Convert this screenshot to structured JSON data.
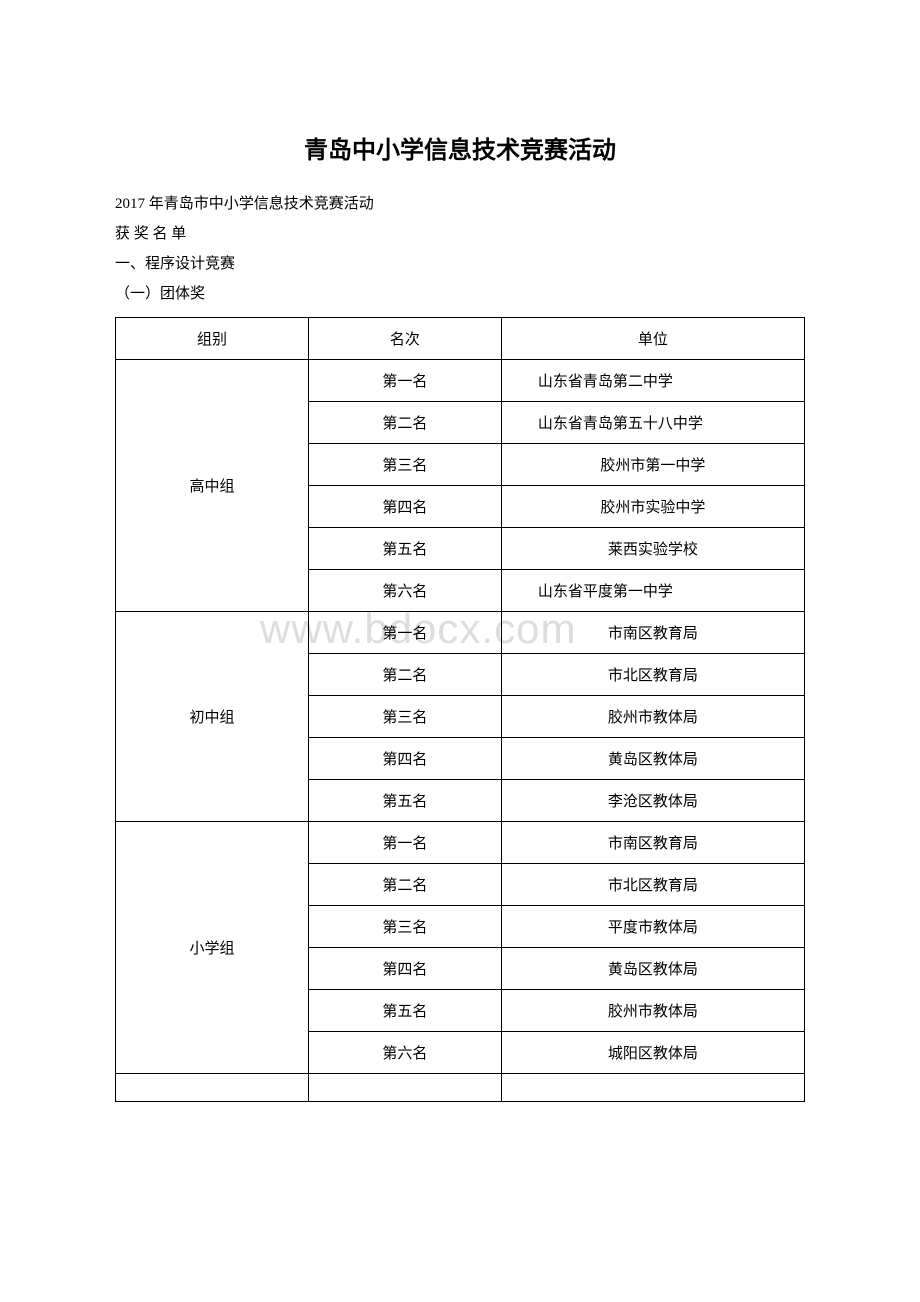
{
  "watermark": "www.bdocx.com",
  "heading": "青岛中小学信息技术竞赛活动",
  "intro": [
    "2017 年青岛市中小学信息技术竞赛活动",
    "获 奖 名 单",
    "一、程序设计竞赛",
    "（一）团体奖"
  ],
  "table": {
    "columns": [
      "组别",
      "名次",
      "单位"
    ],
    "groups": [
      {
        "name": "高中组",
        "rows": [
          {
            "rank": "第一名",
            "unit": "山东省青岛第二中学",
            "unitCentered": false
          },
          {
            "rank": "第二名",
            "unit": "山东省青岛第五十八中学",
            "unitCentered": false
          },
          {
            "rank": "第三名",
            "unit": "胶州市第一中学",
            "unitCentered": true
          },
          {
            "rank": "第四名",
            "unit": "胶州市实验中学",
            "unitCentered": true
          },
          {
            "rank": "第五名",
            "unit": "莱西实验学校",
            "unitCentered": true
          },
          {
            "rank": "第六名",
            "unit": "山东省平度第一中学",
            "unitCentered": false
          }
        ]
      },
      {
        "name": "初中组",
        "rows": [
          {
            "rank": "第一名",
            "unit": "市南区教育局",
            "unitCentered": true
          },
          {
            "rank": "第二名",
            "unit": "市北区教育局",
            "unitCentered": true
          },
          {
            "rank": "第三名",
            "unit": "胶州市教体局",
            "unitCentered": true
          },
          {
            "rank": "第四名",
            "unit": "黄岛区教体局",
            "unitCentered": true
          },
          {
            "rank": "第五名",
            "unit": "李沧区教体局",
            "unitCentered": true
          }
        ]
      },
      {
        "name": "小学组",
        "rows": [
          {
            "rank": "第一名",
            "unit": "市南区教育局",
            "unitCentered": true
          },
          {
            "rank": "第二名",
            "unit": "市北区教育局",
            "unitCentered": true
          },
          {
            "rank": "第三名",
            "unit": "平度市教体局",
            "unitCentered": true
          },
          {
            "rank": "第四名",
            "unit": "黄岛区教体局",
            "unitCentered": true
          },
          {
            "rank": "第五名",
            "unit": "胶州市教体局",
            "unitCentered": true
          },
          {
            "rank": "第六名",
            "unit": "城阳区教体局",
            "unitCentered": true
          }
        ]
      }
    ]
  }
}
